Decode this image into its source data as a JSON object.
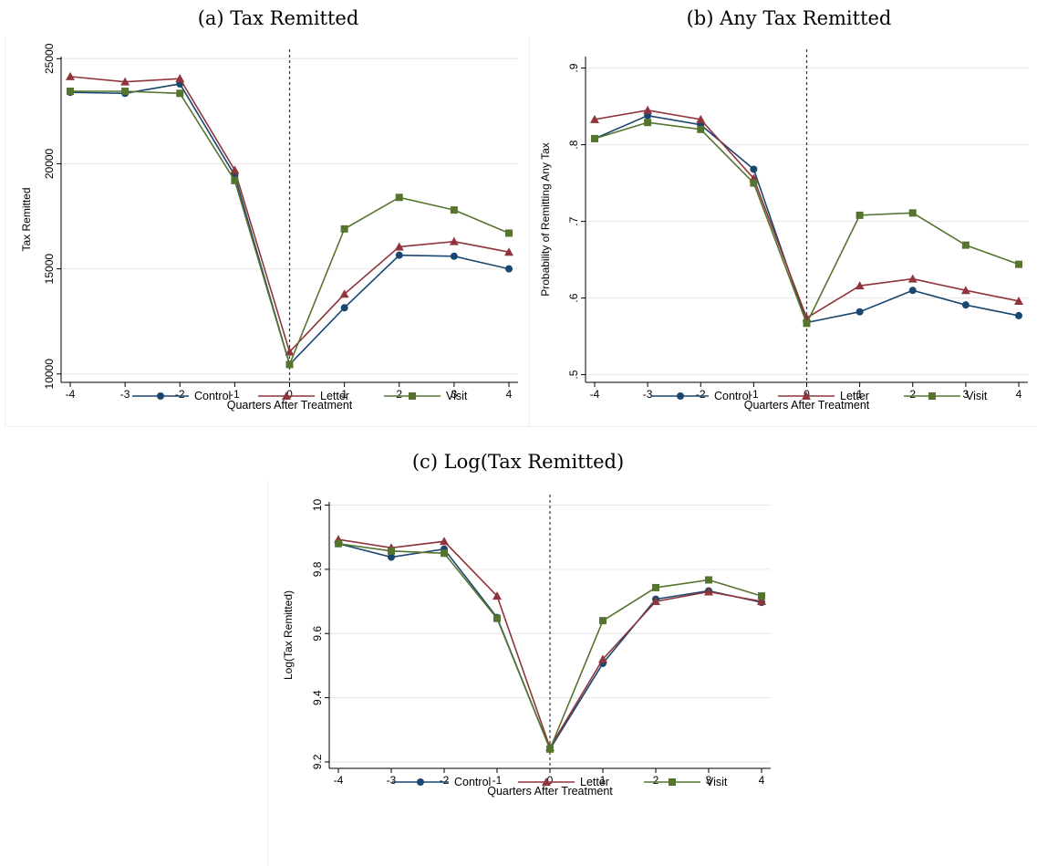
{
  "chart_data": [
    {
      "caption": "(a) Tax Remitted",
      "type": "line",
      "x": [
        -4,
        -3,
        -2,
        -1,
        0,
        1,
        2,
        3,
        4
      ],
      "xlabel": "Quarters After Treatment",
      "ylabel": "Tax Remitted",
      "ylim": [
        9600,
        25100
      ],
      "yticks": [
        10000,
        15000,
        20000,
        25000
      ],
      "ytick_labels": [
        "10000",
        "15000",
        "20000",
        "25000"
      ],
      "vline": 0,
      "grid": true,
      "legend_position": "bottom",
      "series": [
        {
          "name": "Control",
          "marker": "circle",
          "color": "#1a476f",
          "values": [
            23400,
            23350,
            23800,
            19450,
            10450,
            13150,
            15650,
            15600,
            15000
          ]
        },
        {
          "name": "Letter",
          "marker": "triangle",
          "color": "#90353b",
          "values": [
            24150,
            23900,
            24050,
            19700,
            11050,
            13800,
            16050,
            16300,
            15800
          ]
        },
        {
          "name": "Visit",
          "marker": "square",
          "color": "#55752f",
          "values": [
            23450,
            23450,
            23350,
            19200,
            10450,
            16900,
            18400,
            17800,
            16700
          ]
        }
      ]
    },
    {
      "caption": "(b) Any Tax Remitted",
      "type": "line",
      "x": [
        -4,
        -3,
        -2,
        -1,
        0,
        1,
        2,
        3,
        4
      ],
      "xlabel": "Quarters After Treatment",
      "ylabel": "Probability of Remitting Any Tax",
      "ylim": [
        0.49,
        0.915
      ],
      "yticks": [
        0.5,
        0.6,
        0.7,
        0.8,
        0.9
      ],
      "ytick_labels": [
        ".5",
        ".6",
        ".7",
        ".8",
        ".9"
      ],
      "vline": 0,
      "grid": true,
      "legend_position": "bottom",
      "series": [
        {
          "name": "Control",
          "marker": "circle",
          "color": "#1a476f",
          "values": [
            0.808,
            0.838,
            0.826,
            0.768,
            0.568,
            0.582,
            0.61,
            0.591,
            0.577
          ]
        },
        {
          "name": "Letter",
          "marker": "triangle",
          "color": "#90353b",
          "values": [
            0.833,
            0.845,
            0.833,
            0.756,
            0.574,
            0.616,
            0.625,
            0.61,
            0.596
          ]
        },
        {
          "name": "Visit",
          "marker": "square",
          "color": "#55752f",
          "values": [
            0.808,
            0.829,
            0.82,
            0.75,
            0.567,
            0.708,
            0.711,
            0.669,
            0.644
          ]
        }
      ]
    },
    {
      "caption": "(c) Log(Tax Remitted)",
      "type": "line",
      "x": [
        -4,
        -3,
        -2,
        -1,
        0,
        1,
        2,
        3,
        4
      ],
      "xlabel": "Quarters After Treatment",
      "ylabel": "Log(Tax Remitted)",
      "ylim": [
        9.18,
        10.01
      ],
      "yticks": [
        9.2,
        9.4,
        9.6,
        9.8,
        10
      ],
      "ytick_labels": [
        "9.2",
        "9.4",
        "9.6",
        "9.8",
        "10"
      ],
      "vline": 0,
      "grid": true,
      "legend_position": "bottom",
      "series": [
        {
          "name": "Control",
          "marker": "circle",
          "color": "#1a476f",
          "values": [
            9.88,
            9.838,
            9.863,
            9.65,
            9.24,
            9.507,
            9.707,
            9.733,
            9.697
          ]
        },
        {
          "name": "Letter",
          "marker": "triangle",
          "color": "#90353b",
          "values": [
            9.893,
            9.867,
            9.887,
            9.717,
            9.245,
            9.52,
            9.7,
            9.73,
            9.7
          ]
        },
        {
          "name": "Visit",
          "marker": "square",
          "color": "#55752f",
          "values": [
            9.88,
            9.857,
            9.85,
            9.647,
            9.24,
            9.64,
            9.743,
            9.767,
            9.717
          ]
        }
      ]
    }
  ]
}
